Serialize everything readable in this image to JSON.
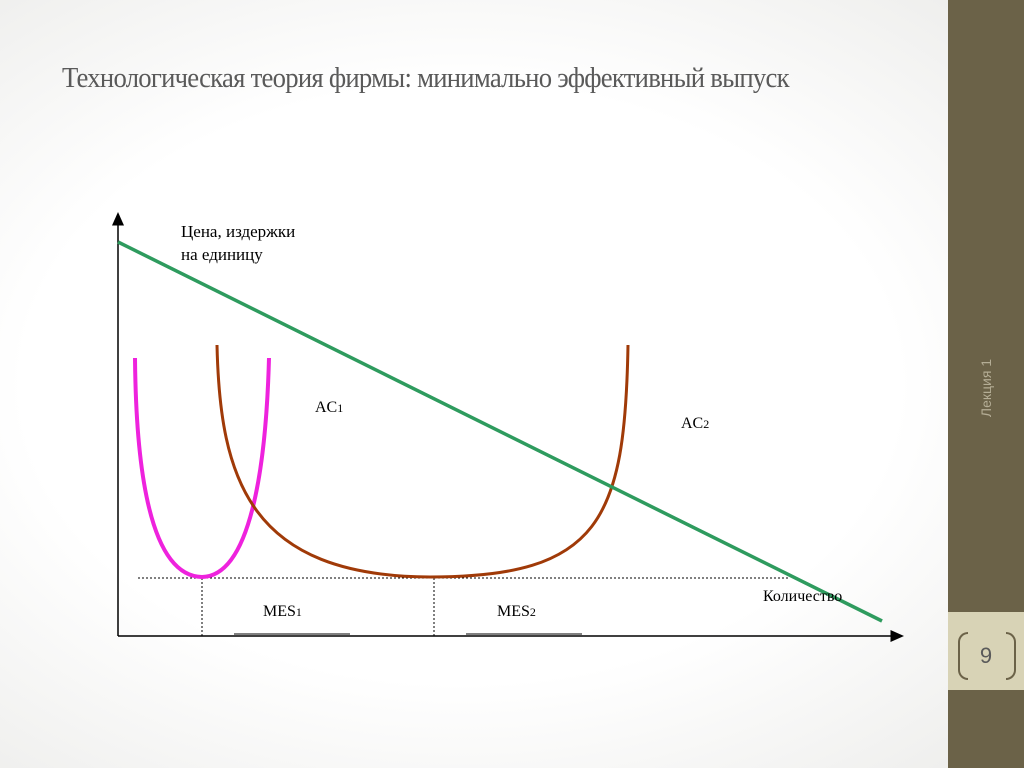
{
  "slide": {
    "title": "Технологическая теория фирмы: минимально эффективный выпуск",
    "footer_label": "Лекция 1",
    "page_number": "9"
  },
  "diagram": {
    "y_axis_label_line1": "Цена, издержки",
    "y_axis_label_line2": "на единицу",
    "x_axis_label": "Количество",
    "curve_ac1_label": "AC",
    "curve_ac1_sub": "1",
    "curve_ac2_label": "AC",
    "curve_ac2_sub": "2",
    "mes1_label": "MES",
    "mes1_sub": "1",
    "mes2_label": "MES",
    "mes2_sub": "2",
    "colors": {
      "demand": "#2e9b5e",
      "ac_small": "#ee22dd",
      "ac_large": "#a03a08",
      "axis": "#000000"
    }
  }
}
